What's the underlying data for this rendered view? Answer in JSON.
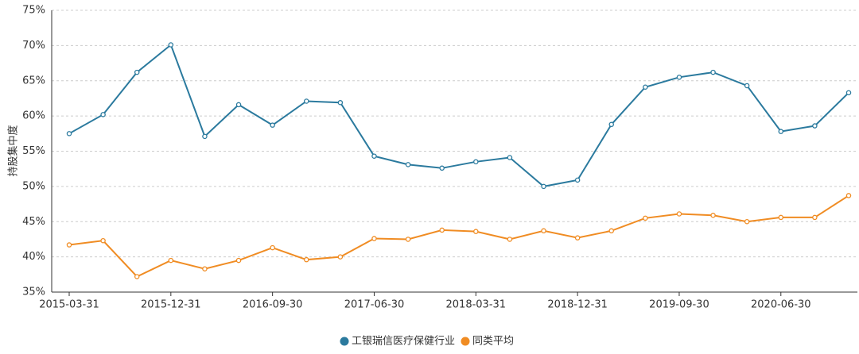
{
  "chart_data": {
    "type": "line",
    "y_label": "持股集中度",
    "categories": [
      "2015-03-31",
      null,
      null,
      "2015-12-31",
      null,
      null,
      "2016-09-30",
      null,
      null,
      "2017-06-30",
      null,
      null,
      "2018-03-31",
      null,
      null,
      "2018-12-31",
      null,
      null,
      "2019-09-30",
      null,
      null,
      "2020-06-30",
      null,
      null
    ],
    "series": [
      {
        "name": "工银瑞信医疗保健行业",
        "color": "#2b7a9e",
        "values": [
          57.5,
          60.2,
          66.2,
          70.1,
          57.1,
          61.6,
          58.7,
          62.1,
          61.9,
          54.3,
          53.1,
          52.6,
          53.5,
          54.1,
          50.0,
          50.9,
          58.8,
          64.1,
          65.5,
          66.2,
          64.3,
          57.8,
          58.6,
          63.3
        ]
      },
      {
        "name": "同类平均",
        "color": "#f08c23",
        "values": [
          41.7,
          42.3,
          37.2,
          39.5,
          38.3,
          39.5,
          41.3,
          39.6,
          40.0,
          42.6,
          42.5,
          43.8,
          43.6,
          42.5,
          43.7,
          42.7,
          43.7,
          45.5,
          46.1,
          45.9,
          45.0,
          45.6,
          45.6,
          48.7
        ]
      }
    ],
    "ylim": [
      35,
      75
    ],
    "yticks": [
      {
        "value": 35,
        "label": "35%"
      },
      {
        "value": 40,
        "label": "40%"
      },
      {
        "value": 45,
        "label": "45%"
      },
      {
        "value": 50,
        "label": "50%"
      },
      {
        "value": 55,
        "label": "55%"
      },
      {
        "value": 60,
        "label": "60%"
      },
      {
        "value": 65,
        "label": "65%"
      },
      {
        "value": 70,
        "label": "70%"
      },
      {
        "value": 75,
        "label": "75%"
      }
    ],
    "grid": true,
    "legend": "bottom"
  }
}
